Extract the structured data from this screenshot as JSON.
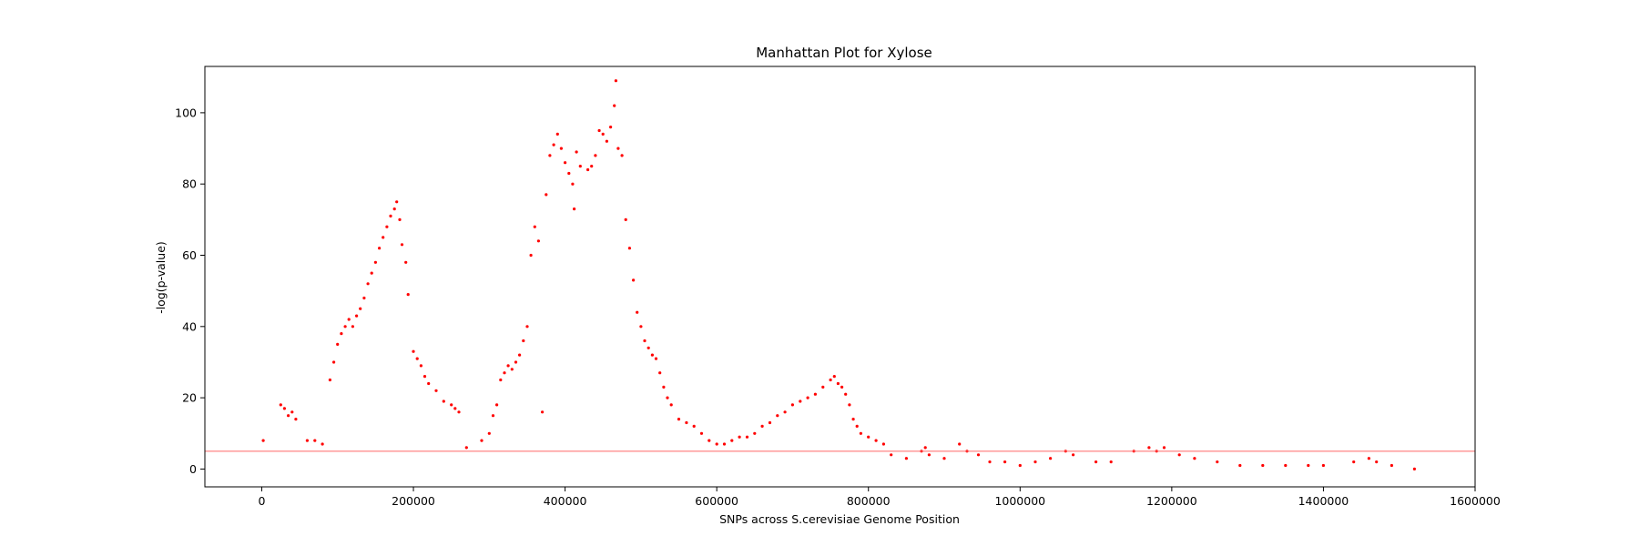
{
  "chart_data": {
    "type": "scatter",
    "title": "Manhattan Plot for Xylose",
    "xlabel": "SNPs across S.cerevisiae Genome Position",
    "ylabel": "-log(p-value)",
    "xlim": [
      -75000,
      1600000
    ],
    "ylim": [
      -5,
      113
    ],
    "xticks": [
      0,
      200000,
      400000,
      600000,
      800000,
      1000000,
      1200000,
      1400000,
      1600000
    ],
    "xtick_labels": [
      "0",
      "200000",
      "400000",
      "600000",
      "800000",
      "1000000",
      "1200000",
      "1400000",
      "1600000"
    ],
    "yticks": [
      0,
      20,
      40,
      60,
      80,
      100
    ],
    "ytick_labels": [
      "0",
      "20",
      "40",
      "60",
      "80",
      "100"
    ],
    "threshold": 5,
    "colors": {
      "points": "#ff0000",
      "threshold_line": "#ff6666",
      "axes": "#000000"
    },
    "grid": false,
    "legend": "none",
    "series": [
      {
        "points": [
          [
            2000,
            8
          ],
          [
            25000,
            18
          ],
          [
            30000,
            17
          ],
          [
            35000,
            15
          ],
          [
            40000,
            16
          ],
          [
            45000,
            14
          ],
          [
            60000,
            8
          ],
          [
            70000,
            8
          ],
          [
            80000,
            7
          ],
          [
            90000,
            25
          ],
          [
            95000,
            30
          ],
          [
            100000,
            35
          ],
          [
            105000,
            38
          ],
          [
            110000,
            40
          ],
          [
            115000,
            42
          ],
          [
            120000,
            40
          ],
          [
            125000,
            43
          ],
          [
            130000,
            45
          ],
          [
            135000,
            48
          ],
          [
            140000,
            52
          ],
          [
            145000,
            55
          ],
          [
            150000,
            58
          ],
          [
            155000,
            62
          ],
          [
            160000,
            65
          ],
          [
            165000,
            68
          ],
          [
            170000,
            71
          ],
          [
            175000,
            73
          ],
          [
            178000,
            75
          ],
          [
            182000,
            70
          ],
          [
            185000,
            63
          ],
          [
            190000,
            58
          ],
          [
            193000,
            49
          ],
          [
            200000,
            33
          ],
          [
            205000,
            31
          ],
          [
            210000,
            29
          ],
          [
            215000,
            26
          ],
          [
            220000,
            24
          ],
          [
            230000,
            22
          ],
          [
            240000,
            19
          ],
          [
            250000,
            18
          ],
          [
            255000,
            17
          ],
          [
            260000,
            16
          ],
          [
            270000,
            6
          ],
          [
            290000,
            8
          ],
          [
            300000,
            10
          ],
          [
            305000,
            15
          ],
          [
            310000,
            18
          ],
          [
            315000,
            25
          ],
          [
            320000,
            27
          ],
          [
            325000,
            29
          ],
          [
            330000,
            28
          ],
          [
            335000,
            30
          ],
          [
            340000,
            32
          ],
          [
            345000,
            36
          ],
          [
            350000,
            40
          ],
          [
            355000,
            60
          ],
          [
            360000,
            68
          ],
          [
            365000,
            64
          ],
          [
            370000,
            16
          ],
          [
            375000,
            77
          ],
          [
            380000,
            88
          ],
          [
            385000,
            91
          ],
          [
            390000,
            94
          ],
          [
            395000,
            90
          ],
          [
            400000,
            86
          ],
          [
            405000,
            83
          ],
          [
            410000,
            80
          ],
          [
            412000,
            73
          ],
          [
            415000,
            89
          ],
          [
            420000,
            85
          ],
          [
            430000,
            84
          ],
          [
            435000,
            85
          ],
          [
            440000,
            88
          ],
          [
            445000,
            95
          ],
          [
            450000,
            94
          ],
          [
            455000,
            92
          ],
          [
            460000,
            96
          ],
          [
            465000,
            102
          ],
          [
            467000,
            109
          ],
          [
            470000,
            90
          ],
          [
            475000,
            88
          ],
          [
            480000,
            70
          ],
          [
            485000,
            62
          ],
          [
            490000,
            53
          ],
          [
            495000,
            44
          ],
          [
            500000,
            40
          ],
          [
            505000,
            36
          ],
          [
            510000,
            34
          ],
          [
            515000,
            32
          ],
          [
            520000,
            31
          ],
          [
            525000,
            27
          ],
          [
            530000,
            23
          ],
          [
            535000,
            20
          ],
          [
            540000,
            18
          ],
          [
            550000,
            14
          ],
          [
            560000,
            13
          ],
          [
            570000,
            12
          ],
          [
            580000,
            10
          ],
          [
            590000,
            8
          ],
          [
            600000,
            7
          ],
          [
            610000,
            7
          ],
          [
            620000,
            8
          ],
          [
            630000,
            9
          ],
          [
            640000,
            9
          ],
          [
            650000,
            10
          ],
          [
            660000,
            12
          ],
          [
            670000,
            13
          ],
          [
            680000,
            15
          ],
          [
            690000,
            16
          ],
          [
            700000,
            18
          ],
          [
            710000,
            19
          ],
          [
            720000,
            20
          ],
          [
            730000,
            21
          ],
          [
            740000,
            23
          ],
          [
            750000,
            25
          ],
          [
            755000,
            26
          ],
          [
            760000,
            24
          ],
          [
            765000,
            23
          ],
          [
            770000,
            21
          ],
          [
            775000,
            18
          ],
          [
            780000,
            14
          ],
          [
            785000,
            12
          ],
          [
            790000,
            10
          ],
          [
            800000,
            9
          ],
          [
            810000,
            8
          ],
          [
            820000,
            7
          ],
          [
            830000,
            4
          ],
          [
            850000,
            3
          ],
          [
            870000,
            5
          ],
          [
            875000,
            6
          ],
          [
            880000,
            4
          ],
          [
            900000,
            3
          ],
          [
            920000,
            7
          ],
          [
            930000,
            5
          ],
          [
            945000,
            4
          ],
          [
            960000,
            2
          ],
          [
            980000,
            2
          ],
          [
            1000000,
            1
          ],
          [
            1020000,
            2
          ],
          [
            1040000,
            3
          ],
          [
            1060000,
            5
          ],
          [
            1070000,
            4
          ],
          [
            1100000,
            2
          ],
          [
            1120000,
            2
          ],
          [
            1150000,
            5
          ],
          [
            1170000,
            6
          ],
          [
            1180000,
            5
          ],
          [
            1190000,
            6
          ],
          [
            1210000,
            4
          ],
          [
            1230000,
            3
          ],
          [
            1260000,
            2
          ],
          [
            1290000,
            1
          ],
          [
            1320000,
            1
          ],
          [
            1350000,
            1
          ],
          [
            1380000,
            1
          ],
          [
            1400000,
            1
          ],
          [
            1440000,
            2
          ],
          [
            1460000,
            3
          ],
          [
            1470000,
            2
          ],
          [
            1490000,
            1
          ],
          [
            1520000,
            0
          ]
        ]
      }
    ]
  }
}
